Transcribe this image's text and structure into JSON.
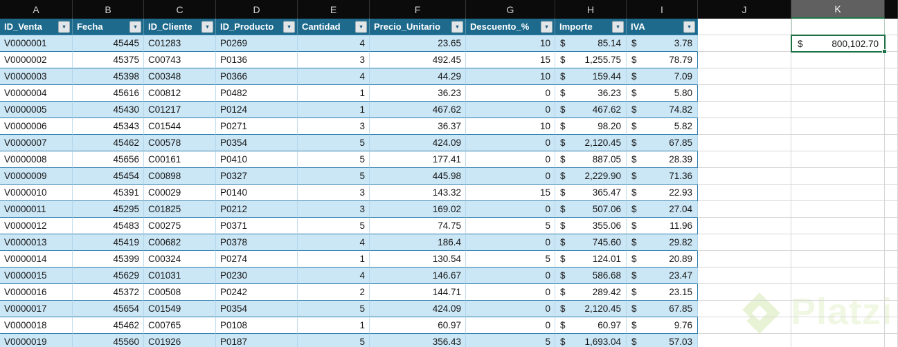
{
  "columns_strip": {
    "letters": [
      "A",
      "B",
      "C",
      "D",
      "E",
      "F",
      "G",
      "H",
      "I",
      "J",
      "K"
    ],
    "selected_letter": "K"
  },
  "table": {
    "headers": [
      "ID_Venta",
      "Fecha",
      "ID_Cliente",
      "ID_Producto",
      "Cantidad",
      "Precio_Unitario",
      "Descuento_%",
      "Importe",
      "IVA"
    ],
    "filter_icon": "chevron-down",
    "currency_symbol": "$",
    "accounting_columns": [
      7,
      8
    ],
    "rows": [
      [
        "V0000001",
        "45445",
        "C01283",
        "P0269",
        "4",
        "23.65",
        "10",
        "85.14",
        "3.78"
      ],
      [
        "V0000002",
        "45375",
        "C00743",
        "P0136",
        "3",
        "492.45",
        "15",
        "1,255.75",
        "78.79"
      ],
      [
        "V0000003",
        "45398",
        "C00348",
        "P0366",
        "4",
        "44.29",
        "10",
        "159.44",
        "7.09"
      ],
      [
        "V0000004",
        "45616",
        "C00812",
        "P0482",
        "1",
        "36.23",
        "0",
        "36.23",
        "5.80"
      ],
      [
        "V0000005",
        "45430",
        "C01217",
        "P0124",
        "1",
        "467.62",
        "0",
        "467.62",
        "74.82"
      ],
      [
        "V0000006",
        "45343",
        "C01544",
        "P0271",
        "3",
        "36.37",
        "10",
        "98.20",
        "5.82"
      ],
      [
        "V0000007",
        "45462",
        "C00578",
        "P0354",
        "5",
        "424.09",
        "0",
        "2,120.45",
        "67.85"
      ],
      [
        "V0000008",
        "45656",
        "C00161",
        "P0410",
        "5",
        "177.41",
        "0",
        "887.05",
        "28.39"
      ],
      [
        "V0000009",
        "45454",
        "C00898",
        "P0327",
        "5",
        "445.98",
        "0",
        "2,229.90",
        "71.36"
      ],
      [
        "V0000010",
        "45391",
        "C00029",
        "P0140",
        "3",
        "143.32",
        "15",
        "365.47",
        "22.93"
      ],
      [
        "V0000011",
        "45295",
        "C01825",
        "P0212",
        "3",
        "169.02",
        "0",
        "507.06",
        "27.04"
      ],
      [
        "V0000012",
        "45483",
        "C00275",
        "P0371",
        "5",
        "74.75",
        "5",
        "355.06",
        "11.96"
      ],
      [
        "V0000013",
        "45419",
        "C00682",
        "P0378",
        "4",
        "186.4",
        "0",
        "745.60",
        "29.82"
      ],
      [
        "V0000014",
        "45399",
        "C00324",
        "P0274",
        "1",
        "130.54",
        "5",
        "124.01",
        "20.89"
      ],
      [
        "V0000015",
        "45629",
        "C01031",
        "P0230",
        "4",
        "146.67",
        "0",
        "586.68",
        "23.47"
      ],
      [
        "V0000016",
        "45372",
        "C00508",
        "P0242",
        "2",
        "144.71",
        "0",
        "289.42",
        "23.15"
      ],
      [
        "V0000017",
        "45654",
        "C01549",
        "P0354",
        "5",
        "424.09",
        "0",
        "2,120.45",
        "67.85"
      ],
      [
        "V0000018",
        "45462",
        "C00765",
        "P0108",
        "1",
        "60.97",
        "0",
        "60.97",
        "9.76"
      ],
      [
        "V0000019",
        "45560",
        "C01926",
        "P0187",
        "5",
        "356.43",
        "5",
        "1,693.04",
        "57.03"
      ]
    ]
  },
  "selected_cell": {
    "currency": "$",
    "value": "800,102.70"
  },
  "watermark": {
    "text": "Platzi"
  },
  "colors": {
    "header_bg": "#1d6a8d",
    "band_blue": "#cbe6f5",
    "row_border": "#2e7fae",
    "gridline": "#d6d6d6",
    "strip_bg": "#0b0b0b",
    "strip_selected_bg": "#606060",
    "selection_green": "#1e7145",
    "platzi_green": "#98ca3f"
  }
}
